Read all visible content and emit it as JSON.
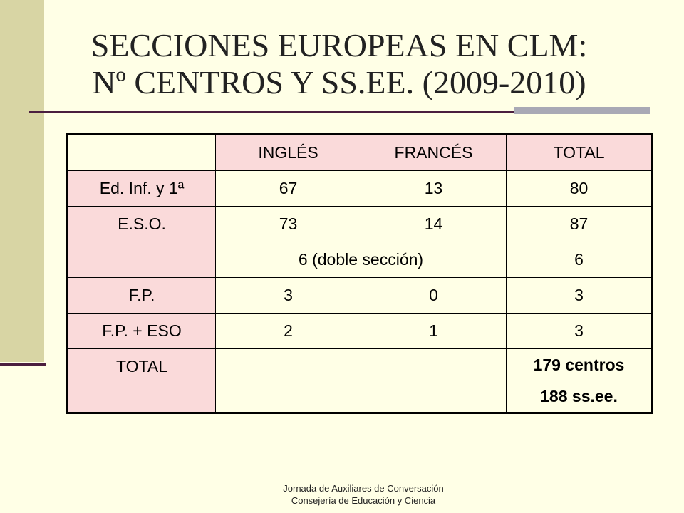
{
  "title": {
    "line1": "SECCIONES EUROPEAS EN CLM:",
    "line2": "Nº CENTROS Y SS.EE. (2009-2010)"
  },
  "table": {
    "columns": [
      "INGLÉS",
      "FRANCÉS",
      "TOTAL"
    ],
    "rows": [
      {
        "label": "Ed. Inf. y 1ª",
        "cells": [
          67,
          13,
          80
        ]
      },
      {
        "label": "E.S.O.",
        "cells": [
          73,
          14,
          87
        ],
        "extra": {
          "combined": "6 (doble sección)",
          "total": 6
        }
      },
      {
        "label": "F.P.",
        "cells": [
          3,
          0,
          3
        ]
      },
      {
        "label": "F.P. + ESO",
        "cells": [
          2,
          1,
          3
        ]
      },
      {
        "label": "TOTAL",
        "total": [
          "179 centros",
          "188 ss.ee."
        ]
      }
    ]
  },
  "footer": {
    "line1": "Jornada de Auxiliares de Conversación",
    "line2": "Consejería  de Educación y Ciencia"
  }
}
